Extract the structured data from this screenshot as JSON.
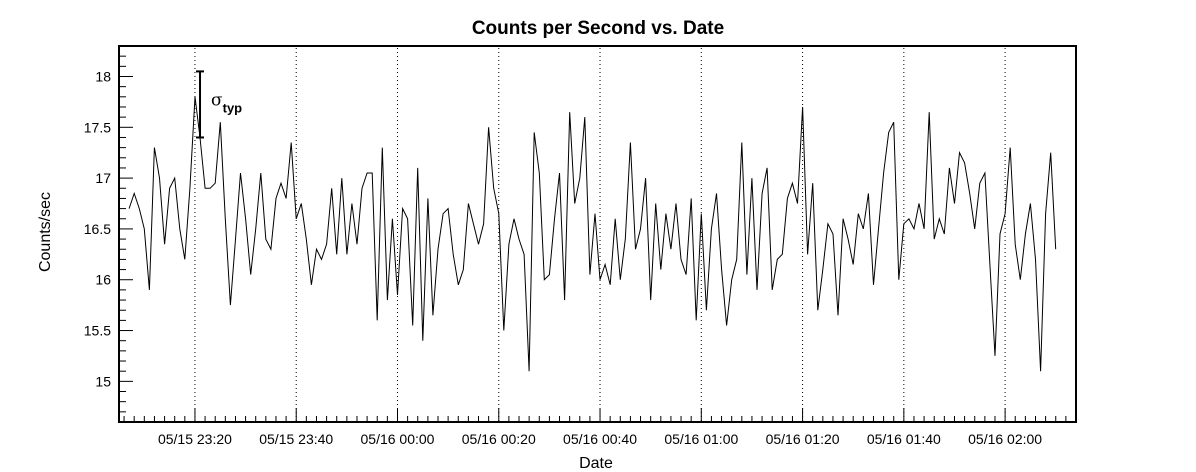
{
  "chart_data": {
    "type": "line",
    "title": "Counts per Second vs. Date",
    "xlabel": "Date",
    "ylabel": "Counts/sec",
    "xlim": [
      "05/15 23:05",
      "05/16 02:14"
    ],
    "ylim": [
      14.6,
      18.3
    ],
    "x_ticks": [
      "05/15 23:20",
      "05/15 23:40",
      "05/16 00:00",
      "05/16 00:20",
      "05/16 00:40",
      "05/16 01:00",
      "05/16 01:20",
      "05/16 01:40",
      "05/16 02:00"
    ],
    "y_ticks": [
      "15",
      "15.5",
      "16",
      "16.5",
      "17",
      "17.5",
      "18"
    ],
    "grid": "vertical dotted at major x ticks",
    "annotation": {
      "symbol": "σ",
      "subscript": "typ",
      "at": "05/15 23:21",
      "low": 17.4,
      "high": 18.05
    },
    "series": [
      {
        "color": "#000000",
        "x": [
          "05/15 23:07",
          "05/15 23:08",
          "05/15 23:09",
          "05/15 23:10",
          "05/15 23:11",
          "05/15 23:12",
          "05/15 23:13",
          "05/15 23:14",
          "05/15 23:15",
          "05/15 23:16",
          "05/15 23:17",
          "05/15 23:18",
          "05/15 23:19",
          "05/15 23:20",
          "05/15 23:21",
          "05/15 23:22",
          "05/15 23:23",
          "05/15 23:24",
          "05/15 23:25",
          "05/15 23:26",
          "05/15 23:27",
          "05/15 23:28",
          "05/15 23:29",
          "05/15 23:30",
          "05/15 23:31",
          "05/15 23:32",
          "05/15 23:33",
          "05/15 23:34",
          "05/15 23:35",
          "05/15 23:36",
          "05/15 23:37",
          "05/15 23:38",
          "05/15 23:39",
          "05/15 23:40",
          "05/15 23:41",
          "05/15 23:42",
          "05/15 23:43",
          "05/15 23:44",
          "05/15 23:45",
          "05/15 23:46",
          "05/15 23:47",
          "05/15 23:48",
          "05/15 23:49",
          "05/15 23:50",
          "05/15 23:51",
          "05/15 23:52",
          "05/15 23:53",
          "05/15 23:54",
          "05/15 23:55",
          "05/15 23:56",
          "05/15 23:57",
          "05/15 23:58",
          "05/15 23:59",
          "05/16 00:00",
          "05/16 00:01",
          "05/16 00:02",
          "05/16 00:03",
          "05/16 00:04",
          "05/16 00:05",
          "05/16 00:06",
          "05/16 00:07",
          "05/16 00:08",
          "05/16 00:09",
          "05/16 00:10",
          "05/16 00:11",
          "05/16 00:12",
          "05/16 00:13",
          "05/16 00:14",
          "05/16 00:15",
          "05/16 00:16",
          "05/16 00:17",
          "05/16 00:18",
          "05/16 00:19",
          "05/16 00:20",
          "05/16 00:21",
          "05/16 00:22",
          "05/16 00:23",
          "05/16 00:24",
          "05/16 00:25",
          "05/16 00:26",
          "05/16 00:27",
          "05/16 00:28",
          "05/16 00:29",
          "05/16 00:30",
          "05/16 00:31",
          "05/16 00:32",
          "05/16 00:33",
          "05/16 00:34",
          "05/16 00:35",
          "05/16 00:36",
          "05/16 00:37",
          "05/16 00:38",
          "05/16 00:39",
          "05/16 00:40",
          "05/16 00:41",
          "05/16 00:42",
          "05/16 00:43",
          "05/16 00:44",
          "05/16 00:45",
          "05/16 00:46",
          "05/16 00:47",
          "05/16 00:48",
          "05/16 00:49",
          "05/16 00:50",
          "05/16 00:51",
          "05/16 00:52",
          "05/16 00:53",
          "05/16 00:54",
          "05/16 00:55",
          "05/16 00:56",
          "05/16 00:57",
          "05/16 00:58",
          "05/16 00:59",
          "05/16 01:00",
          "05/16 01:01",
          "05/16 01:02",
          "05/16 01:03",
          "05/16 01:04",
          "05/16 01:05",
          "05/16 01:06",
          "05/16 01:07",
          "05/16 01:08",
          "05/16 01:09",
          "05/16 01:10",
          "05/16 01:11",
          "05/16 01:12",
          "05/16 01:13",
          "05/16 01:14",
          "05/16 01:15",
          "05/16 01:16",
          "05/16 01:17",
          "05/16 01:18",
          "05/16 01:19",
          "05/16 01:20",
          "05/16 01:21",
          "05/16 01:22",
          "05/16 01:23",
          "05/16 01:24",
          "05/16 01:25",
          "05/16 01:26",
          "05/16 01:27",
          "05/16 01:28",
          "05/16 01:29",
          "05/16 01:30",
          "05/16 01:31",
          "05/16 01:32",
          "05/16 01:33",
          "05/16 01:34",
          "05/16 01:35",
          "05/16 01:36",
          "05/16 01:37",
          "05/16 01:38",
          "05/16 01:39",
          "05/16 01:40",
          "05/16 01:41",
          "05/16 01:42",
          "05/16 01:43",
          "05/16 01:44",
          "05/16 01:45",
          "05/16 01:46",
          "05/16 01:47",
          "05/16 01:48",
          "05/16 01:49",
          "05/16 01:50",
          "05/16 01:51",
          "05/16 01:52",
          "05/16 01:53",
          "05/16 01:54",
          "05/16 01:55",
          "05/16 01:56",
          "05/16 01:57",
          "05/16 01:58",
          "05/16 01:59",
          "05/16 02:00",
          "05/16 02:01",
          "05/16 02:02",
          "05/16 02:03",
          "05/16 02:04",
          "05/16 02:05",
          "05/16 02:06",
          "05/16 02:07",
          "05/16 02:08",
          "05/16 02:09",
          "05/16 02:10"
        ],
        "values": [
          16.7,
          16.85,
          16.7,
          16.5,
          15.9,
          17.3,
          17.0,
          16.35,
          16.9,
          17.0,
          16.5,
          16.2,
          16.9,
          17.8,
          17.4,
          16.9,
          16.9,
          16.95,
          17.55,
          16.6,
          15.75,
          16.4,
          17.05,
          16.6,
          16.05,
          16.5,
          17.05,
          16.4,
          16.3,
          16.8,
          16.95,
          16.8,
          17.35,
          16.6,
          16.75,
          16.4,
          15.95,
          16.3,
          16.2,
          16.35,
          16.9,
          16.25,
          17.0,
          16.25,
          16.75,
          16.35,
          16.9,
          17.05,
          17.05,
          15.6,
          17.3,
          15.8,
          16.6,
          15.85,
          16.7,
          16.6,
          15.55,
          17.1,
          15.4,
          16.8,
          15.65,
          16.3,
          16.65,
          16.7,
          16.25,
          15.95,
          16.1,
          16.75,
          16.55,
          16.35,
          16.55,
          17.5,
          16.9,
          16.65,
          15.5,
          16.35,
          16.6,
          16.4,
          16.25,
          15.1,
          17.45,
          17.05,
          16.0,
          16.05,
          16.6,
          17.05,
          15.8,
          17.65,
          16.75,
          17.0,
          17.6,
          16.05,
          16.65,
          16.0,
          16.15,
          15.95,
          16.6,
          16.0,
          16.4,
          17.35,
          16.3,
          16.5,
          17.0,
          15.8,
          16.75,
          16.1,
          16.65,
          16.3,
          16.75,
          16.2,
          16.05,
          16.8,
          15.6,
          16.65,
          15.7,
          16.5,
          16.85,
          16.1,
          15.55,
          16.0,
          16.2,
          17.35,
          16.05,
          17.0,
          15.9,
          16.85,
          17.1,
          15.9,
          16.2,
          16.25,
          16.8,
          16.95,
          16.75,
          17.7,
          16.25,
          16.95,
          15.7,
          16.1,
          16.55,
          16.45,
          15.65,
          16.6,
          16.4,
          16.15,
          16.65,
          16.5,
          16.85,
          15.95,
          16.5,
          17.05,
          17.45,
          17.55,
          16.0,
          16.55,
          16.6,
          16.5,
          16.75,
          16.5,
          17.65,
          16.4,
          16.6,
          16.45,
          17.1,
          16.75,
          17.25,
          17.15,
          16.85,
          16.5,
          16.95,
          17.05,
          16.15,
          15.25,
          16.45,
          16.65,
          17.3,
          16.35,
          16.0,
          16.45,
          16.75,
          16.2,
          15.1,
          16.65,
          17.25,
          16.3
        ]
      }
    ]
  }
}
